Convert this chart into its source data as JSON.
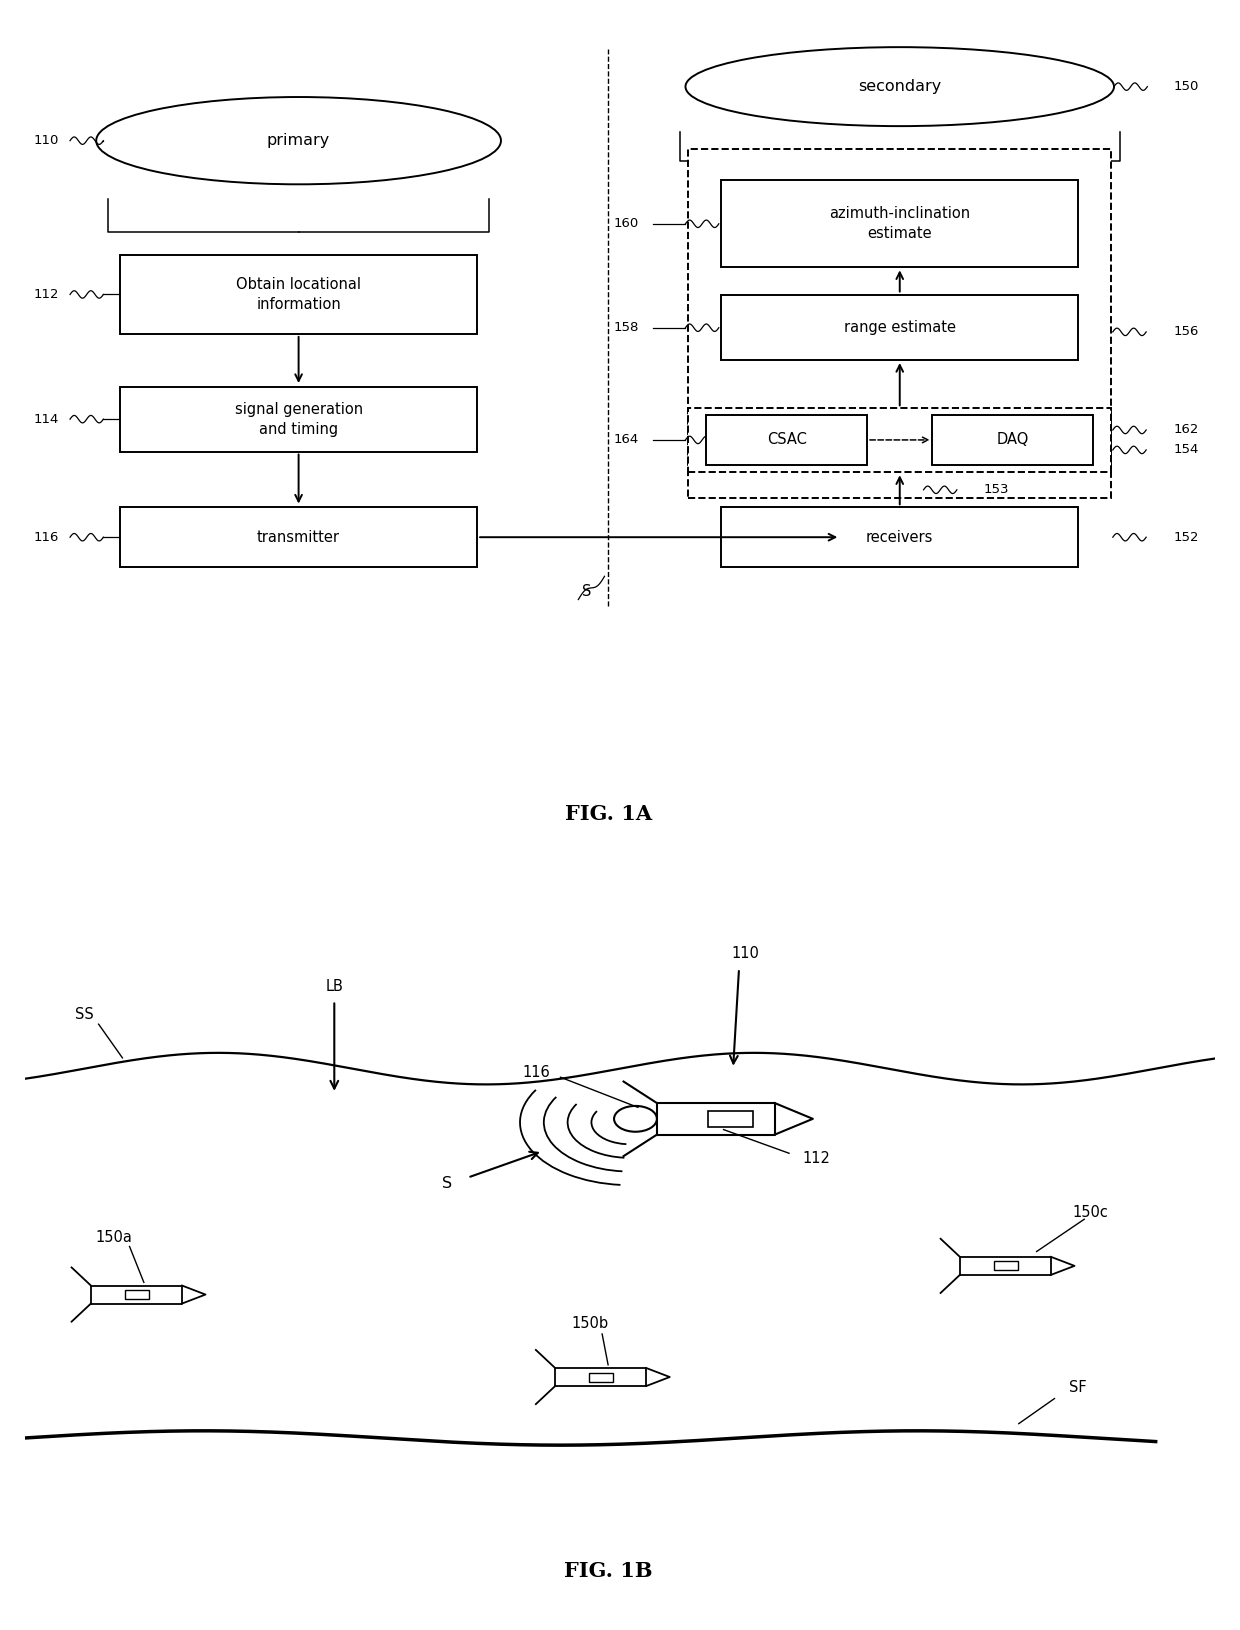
{
  "bg_color": "#ffffff",
  "fig_width": 12.4,
  "fig_height": 16.3,
  "fig1a_title": "FIG. 1A",
  "fig1b_title": "FIG. 1B",
  "primary_label": "primary",
  "primary_ref": "110",
  "secondary_label": "secondary",
  "secondary_ref": "150",
  "box_obtain": "Obtain locational\ninformation",
  "box_obtain_ref": "112",
  "box_signal": "signal generation\nand timing",
  "box_signal_ref": "114",
  "box_transmitter": "transmitter",
  "box_transmitter_ref": "116",
  "box_receivers": "receivers",
  "box_receivers_ref": "152",
  "box_range": "range estimate",
  "box_range_ref": "158",
  "box_azimuth": "azimuth-inclination\nestimate",
  "box_azimuth_ref": "160",
  "box_csac": "CSAC",
  "box_csac_ref": "164",
  "box_daq": "DAQ",
  "box_daq_ref": "162",
  "ref_154": "154",
  "ref_153": "153",
  "ref_156": "156",
  "ref_S_1a": "S",
  "lb2_SS": "SS",
  "lb2_LB": "LB",
  "lb2_110": "110",
  "lb2_116": "116",
  "lb2_112": "112",
  "lb2_S": "S",
  "lb2_150a": "150a",
  "lb2_150b": "150b",
  "lb2_150c": "150c",
  "lb2_SF": "SF"
}
